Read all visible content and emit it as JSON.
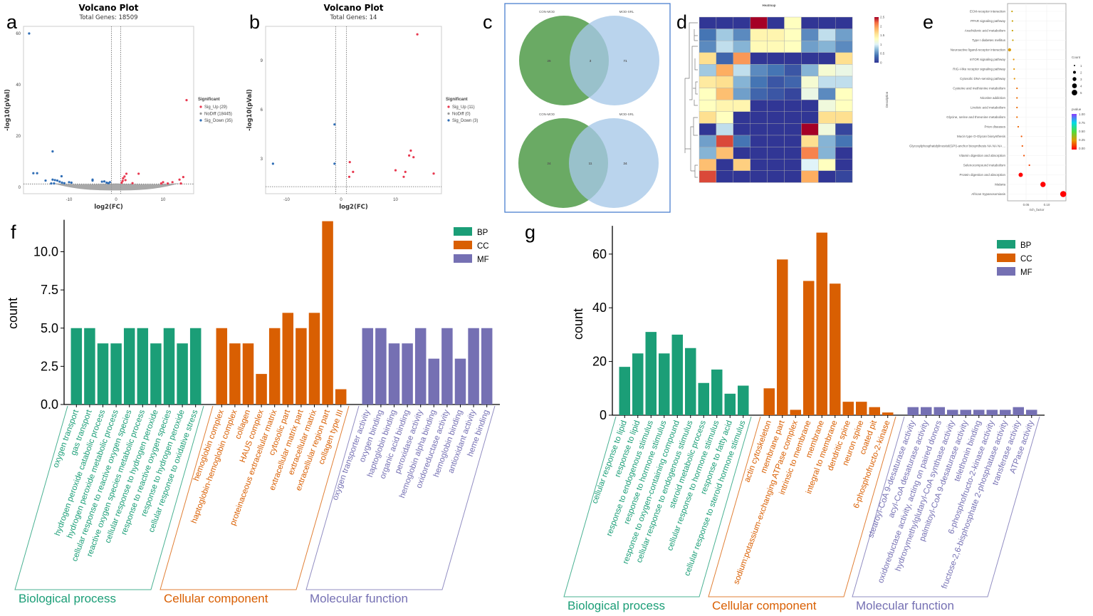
{
  "panel_letters": [
    "a",
    "b",
    "c",
    "d",
    "e",
    "f",
    "g"
  ],
  "colors": {
    "sig_up": "#e8384f",
    "nodiff": "#999999",
    "sig_down": "#2f6db5",
    "BP": "#1b9e77",
    "CC": "#d95f02",
    "MF": "#7570b3",
    "venn_left": "#6aaa64",
    "venn_right": "#a7c8e8"
  },
  "chart_data": [
    {
      "id": "a",
      "type": "scatter",
      "title": "Volcano Plot",
      "subtitle": "Total Genes: 18509",
      "xlabel": "log2(FC)",
      "ylabel": "-log10(pVal)",
      "xticks": [
        "-10",
        "0",
        "10"
      ],
      "yticks": [
        "0",
        "20",
        "40",
        "60"
      ],
      "xlim": [
        -20,
        16
      ],
      "ylim": [
        -3,
        64
      ],
      "legend_title": "Significant",
      "legend": [
        "Sig_Up (29)",
        "NoDiff (18445)",
        "Sig_Down (35)"
      ],
      "thresholds": {
        "log2fc": [
          -1,
          1
        ],
        "neg_log10_p": 1.3
      },
      "sig_up": [
        [
          15,
          34
        ],
        [
          2.2,
          5.3
        ],
        [
          4.8,
          5.3
        ],
        [
          14.3,
          4
        ],
        [
          13.5,
          3
        ],
        [
          1.5,
          3.5
        ],
        [
          1.8,
          4.2
        ],
        [
          1.4,
          2.5
        ],
        [
          2,
          2.8
        ],
        [
          10,
          2
        ],
        [
          9.6,
          1.5
        ],
        [
          12,
          2
        ],
        [
          13.8,
          1.5
        ],
        [
          11,
          1.5
        ],
        [
          3.5,
          1.6
        ],
        [
          1.2,
          1.8
        ]
      ],
      "sig_down": [
        [
          -18.5,
          60
        ],
        [
          -13.5,
          14
        ],
        [
          -17.6,
          5.5
        ],
        [
          -16.8,
          5.5
        ],
        [
          -11.6,
          4.3
        ],
        [
          -15,
          2.6
        ],
        [
          -13.5,
          3
        ],
        [
          -13,
          2.8
        ],
        [
          -12.5,
          2.6
        ],
        [
          -12,
          2.2
        ],
        [
          -11.5,
          1.8
        ],
        [
          -11,
          1.6
        ],
        [
          -10,
          2
        ],
        [
          -9.5,
          1.8
        ],
        [
          -5,
          3
        ],
        [
          -5,
          2.6
        ],
        [
          -3,
          2.2
        ],
        [
          -2.5,
          2.3
        ],
        [
          -2,
          1.8
        ],
        [
          -1.6,
          1.6
        ],
        [
          -1.3,
          2
        ],
        [
          -13.8,
          1.5
        ],
        [
          -13.2,
          1.5
        ]
      ]
    },
    {
      "id": "b",
      "type": "scatter",
      "title": "Volcano Plot",
      "subtitle": "Total Genes: 14",
      "xlabel": "log2(FC)",
      "ylabel": "-log10(pVal)",
      "xticks": [
        "-10",
        "0",
        "10"
      ],
      "yticks": [
        "3",
        "6",
        "9"
      ],
      "xlim": [
        -14,
        18.5
      ],
      "ylim": [
        0.9,
        11.1
      ],
      "legend_title": "Significant",
      "legend": [
        "Sig_Up (11)",
        "NoDiff (0)",
        "Sig_Down (3)"
      ],
      "thresholds": {
        "log2fc": [
          -1,
          1
        ],
        "neg_log10_p": 1.3
      },
      "sig_up": [
        [
          14,
          10.6
        ],
        [
          1.6,
          2.8
        ],
        [
          2.2,
          2.2
        ],
        [
          1.5,
          1.9
        ],
        [
          10,
          2.3
        ],
        [
          11.5,
          1.9
        ],
        [
          11.8,
          2.2
        ],
        [
          12.5,
          3.2
        ],
        [
          12.8,
          3.5
        ],
        [
          13.3,
          3.1
        ],
        [
          17,
          2.1
        ]
      ],
      "sig_down": [
        [
          -12.5,
          2.7
        ],
        [
          -1.2,
          2.7
        ],
        [
          -1.2,
          5.1
        ]
      ]
    },
    {
      "id": "c",
      "type": "venn",
      "diagrams": [
        {
          "left_label": "CON-MOD",
          "right_label": "MOD-SRL",
          "left_only": "25",
          "both": "3",
          "right_only": "71"
        },
        {
          "left_label": "CON-MOD",
          "right_label": "MOD-SRL",
          "left_only": "24",
          "both": "11",
          "right_only": "24"
        }
      ]
    },
    {
      "id": "d",
      "type": "heatmap",
      "title": "Heatmap",
      "colorbar_ticks": [
        "0",
        "0.5",
        "1",
        "1.5",
        "2",
        "2.5"
      ],
      "zlim": [
        0,
        2.5
      ],
      "values": [
        [
          0,
          0,
          0,
          2.5,
          0,
          1.3,
          0,
          0,
          0
        ],
        [
          0.4,
          0.8,
          0.5,
          1.4,
          1.4,
          1.3,
          0.5,
          0.9,
          0.6
        ],
        [
          0.5,
          0.9,
          0.7,
          1.35,
          1.35,
          1.3,
          0.6,
          0.7,
          0.5
        ],
        [
          1.6,
          0.3,
          2.0,
          0,
          0,
          0,
          0,
          0,
          1.6
        ],
        [
          0.8,
          1.9,
          0.9,
          0.5,
          0.4,
          0.2,
          0.7,
          1.2,
          1.1
        ],
        [
          1.5,
          1.6,
          0.7,
          0.4,
          0.2,
          0.3,
          1.2,
          0.9,
          0.9
        ],
        [
          1.3,
          1.8,
          0.6,
          0.3,
          0.2,
          0.1,
          1.1,
          0.5,
          1.3
        ],
        [
          1.3,
          1.4,
          1.4,
          0,
          0,
          0,
          0,
          1.15,
          1.3
        ],
        [
          1.6,
          1.3,
          0,
          0,
          0,
          0,
          0,
          1.6,
          1.6
        ],
        [
          0,
          0.9,
          0,
          0,
          0,
          0,
          2.5,
          1.15,
          0.1
        ],
        [
          0.6,
          2.3,
          0.4,
          0,
          0,
          0,
          1.6,
          0.7,
          0.4
        ],
        [
          0.7,
          1.8,
          0,
          0,
          0,
          0,
          2.1,
          0.7,
          0
        ],
        [
          1.8,
          0,
          1.7,
          0,
          0,
          0,
          1.0,
          1.3,
          0
        ],
        [
          2.3,
          0,
          0,
          0,
          0,
          0,
          1.9,
          0,
          0.1
        ]
      ]
    },
    {
      "id": "e",
      "type": "scatter",
      "xlabel": "rich_factor",
      "ylabel": "Description",
      "xticks": [
        "0.05",
        "0.10"
      ],
      "xlim": [
        0.005,
        0.145
      ],
      "size_legend_title": "Count",
      "size_legend": [
        "1",
        "2",
        "3",
        "4",
        "5"
      ],
      "color_legend_title": "pvalue",
      "color_legend": [
        "1.00",
        "0.75",
        "0.50",
        "0.25",
        "0.00"
      ],
      "terms": [
        {
          "name": "ECM-receptor interaction",
          "rich_factor": 0.016,
          "count": 1,
          "pvalue": 0.3
        },
        {
          "name": "PPAR signaling pathway",
          "rich_factor": 0.017,
          "count": 1,
          "pvalue": 0.3
        },
        {
          "name": "Arachidonic acid metabolism",
          "rich_factor": 0.017,
          "count": 1,
          "pvalue": 0.3
        },
        {
          "name": "Type I diabetes mellitus",
          "rich_factor": 0.018,
          "count": 1,
          "pvalue": 0.3
        },
        {
          "name": "Neuroactive ligand-receptor interaction",
          "rich_factor": 0.01,
          "count": 2,
          "pvalue": 0.27
        },
        {
          "name": "mTOR signaling pathway",
          "rich_factor": 0.02,
          "count": 1,
          "pvalue": 0.25
        },
        {
          "name": "RIG-I-like receptor signaling pathway",
          "rich_factor": 0.021,
          "count": 1,
          "pvalue": 0.25
        },
        {
          "name": "Cytosolic DNA-sensing pathway",
          "rich_factor": 0.022,
          "count": 1,
          "pvalue": 0.25
        },
        {
          "name": "Cysteine and methionine metabolism",
          "rich_factor": 0.028,
          "count": 1,
          "pvalue": 0.18
        },
        {
          "name": "Nicotine addiction",
          "rich_factor": 0.028,
          "count": 1,
          "pvalue": 0.18
        },
        {
          "name": "Linoleic acid metabolism",
          "rich_factor": 0.028,
          "count": 1,
          "pvalue": 0.18
        },
        {
          "name": "Glycine, serine and threonine metabolism",
          "rich_factor": 0.028,
          "count": 1,
          "pvalue": 0.18
        },
        {
          "name": "Prion diseases",
          "rich_factor": 0.031,
          "count": 1,
          "pvalue": 0.17
        },
        {
          "name": "Mucin type O-Glycan biosynthesis",
          "rich_factor": 0.039,
          "count": 1,
          "pvalue": 0.14
        },
        {
          "name": "Glycosylphosphatidylinositol(GPI)-anchor biosynthesis NA NA NA ...",
          "rich_factor": 0.041,
          "count": 1,
          "pvalue": 0.14
        },
        {
          "name": "Vitamin digestion and absorption",
          "rich_factor": 0.045,
          "count": 1,
          "pvalue": 0.13
        },
        {
          "name": "Selenocompound metabolism",
          "rich_factor": 0.058,
          "count": 1,
          "pvalue": 0.1
        },
        {
          "name": "Protein digestion and absorption",
          "rich_factor": 0.037,
          "count": 3,
          "pvalue": 0.0
        },
        {
          "name": "Malaria",
          "rich_factor": 0.091,
          "count": 4,
          "pvalue": 0.0
        },
        {
          "name": "African trypanosomiasis",
          "rich_factor": 0.14,
          "count": 5,
          "pvalue": 0.0
        }
      ]
    },
    {
      "id": "f",
      "type": "bar",
      "ylabel": "count",
      "ylim": [
        0,
        12
      ],
      "yticks": [
        "0.0",
        "2.5",
        "5.0",
        "7.5",
        "10.0"
      ],
      "legend": [
        "BP",
        "CC",
        "MF"
      ],
      "legend_placement": "top-right",
      "groups": [
        {
          "key": "BP",
          "name": "Biological process",
          "categories": [
            "oxygen transport",
            "gas transport",
            "hydrogen peroxide catabolic process",
            "hydrogen peroxide metabolic process",
            "cellular response to reactive oxygen species",
            "reactive oxygen species metabolic process",
            "cellular response to hydrogen peroxide",
            "response to reactive oxygen species",
            "response to hydrogen peroxide",
            "cellular response to oxidative stress"
          ],
          "values": [
            5,
            5,
            4,
            4,
            5,
            5,
            4,
            5,
            4,
            5
          ]
        },
        {
          "key": "CC",
          "name": "Cellular component",
          "categories": [
            "hemoglobin complex",
            "haptoglobin-hemoglobin complex",
            "collagen",
            "HAUS complex",
            "proteinaceous extracellular matrix",
            "cytosolic part",
            "extracellular matrix part",
            "extracellular matrix",
            "extracellular region part",
            "collagen type III"
          ],
          "values": [
            5,
            4,
            4,
            2,
            5,
            6,
            5,
            6,
            12,
            1
          ]
        },
        {
          "key": "MF",
          "name": "Molecular function",
          "categories": [
            "oxygen transporter activity",
            "oxygen binding",
            "haptoglobin binding",
            "organic acid binding",
            "peroxidase activity",
            "hemoglobin alpha binding",
            "oxidoreductase activity",
            "hemoglobin binding",
            "antioxidant activity",
            "heme binding"
          ],
          "values": [
            5,
            5,
            4,
            4,
            5,
            3,
            5,
            3,
            5,
            5
          ]
        }
      ]
    },
    {
      "id": "g",
      "type": "bar",
      "ylabel": "count",
      "ylim": [
        0,
        70
      ],
      "yticks": [
        "0",
        "20",
        "40",
        "60"
      ],
      "legend": [
        "BP",
        "CC",
        "MF"
      ],
      "legend_placement": "top-right",
      "groups": [
        {
          "key": "BP",
          "name": "Biological process",
          "categories": [
            "cellular response to lipid",
            "response to lipid",
            "response to endogenous stimulus",
            "response to hormone stimulus",
            "response to oxygen-containing compound",
            "cellular response to endogenous stimulus",
            "steroid metabolic process",
            "cellular response to hormone stimulus",
            "response to fatty acid",
            "cellular response to steroid hormone stimulus"
          ],
          "values": [
            18,
            23,
            31,
            23,
            30,
            25,
            12,
            17,
            8,
            11
          ]
        },
        {
          "key": "CC",
          "name": "Cellular component",
          "categories": [
            "actin cytoskeleton",
            "membrane part",
            "sodium:potassium-exchanging ATPase complex",
            "intrinsic to membrane",
            "membrane",
            "integral to membrane",
            "dendritic spine",
            "neuron spine",
            "coated pit",
            "6-phosphofructo-2-kinase"
          ],
          "values": [
            10,
            58,
            2,
            50,
            68,
            49,
            5,
            5,
            3,
            1
          ]
        },
        {
          "key": "MF",
          "name": "Molecular function",
          "categories": [
            "stearoyl-CoA 9-desaturase activity",
            "acyl-CoA desaturase activity",
            "oxidoreductase activity, acting on paired donors",
            "hydroxymethylglutaryl-CoA synthase activity",
            "palmitoyl-CoA 9-desaturase activity",
            "telethonin binding",
            "6-phosphofructo-2-kinase activity",
            "fructose-2,6-bisphosphate 2-phosphatase activity",
            "transferase activity",
            "ATPase activity"
          ],
          "values": [
            3,
            3,
            3,
            2,
            2,
            2,
            2,
            2,
            3,
            2
          ]
        }
      ]
    }
  ]
}
